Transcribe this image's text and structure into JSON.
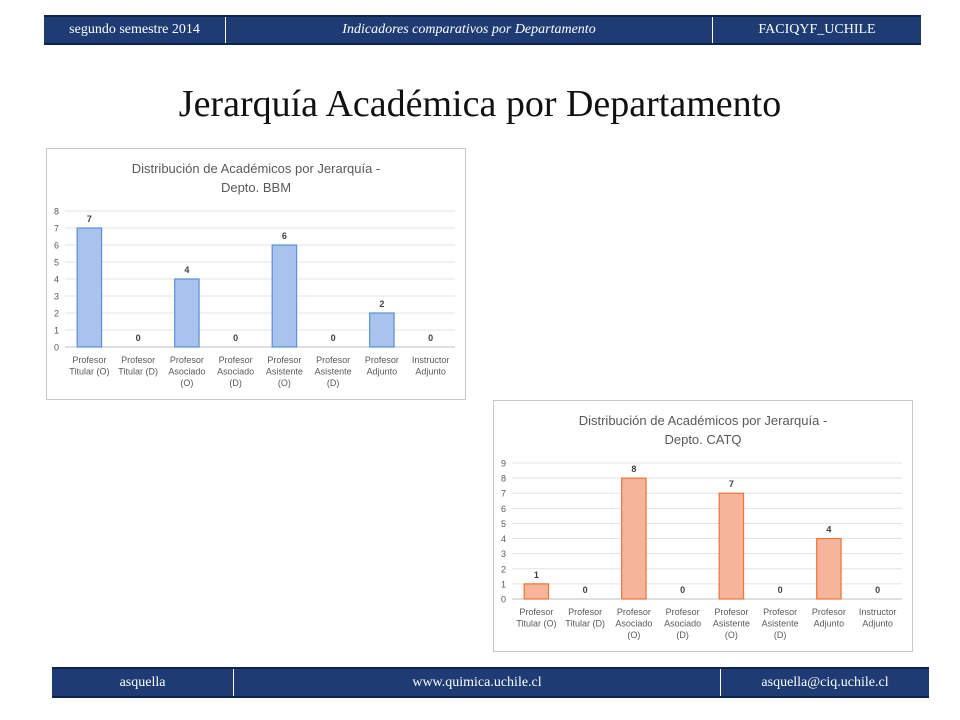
{
  "header": {
    "left": "segundo semestre 2014",
    "center": "Indicadores comparativos por Departamento",
    "right": "FACIQYF_UCHILE"
  },
  "page_title": "Jerarquía Académica por Departamento",
  "footer": {
    "left": "asquella",
    "center": "www.quimica.uchile.cl",
    "right": "asquella@ciq.uchile.cl"
  },
  "colors": {
    "header_bg": "#1f3b73",
    "bbm_bar_fill": "#a9c4ec",
    "bbm_bar_stroke": "#5b8fd6",
    "catq_bar_fill": "#f6b49a",
    "catq_bar_stroke": "#e8743b"
  },
  "chart_data": [
    {
      "type": "bar",
      "title": "Distribución de Académicos por Jerarquía - Depto. BBM",
      "title_lines": [
        "Distribución de Académicos por Jerarquía -",
        "Depto. BBM"
      ],
      "categories": [
        [
          "Profesor",
          "Titular (O)"
        ],
        [
          "Profesor",
          "Titular (D)"
        ],
        [
          "Profesor",
          "Asociado",
          "(O)"
        ],
        [
          "Profesor",
          "Asociado",
          "(D)"
        ],
        [
          "Profesor",
          "Asistente",
          "(O)"
        ],
        [
          "Profesor",
          "Asistente",
          "(D)"
        ],
        [
          "Profesor",
          "Adjunto"
        ],
        [
          "Instructor",
          "Adjunto"
        ]
      ],
      "values": [
        7,
        0,
        4,
        0,
        6,
        0,
        2,
        0
      ],
      "ylim": [
        0,
        8
      ],
      "yticks": [
        0,
        1,
        2,
        3,
        4,
        5,
        6,
        7,
        8
      ],
      "grid": true,
      "data_labels": true,
      "color": "bbm"
    },
    {
      "type": "bar",
      "title": "Distribución de Académicos por Jerarquía - Depto. CATQ",
      "title_lines": [
        "Distribución de Académicos por Jerarquía -",
        "Depto. CATQ"
      ],
      "categories": [
        [
          "Profesor",
          "Titular (O)"
        ],
        [
          "Profesor",
          "Titular (D)"
        ],
        [
          "Profesor",
          "Asociado",
          "(O)"
        ],
        [
          "Profesor",
          "Asociado",
          "(D)"
        ],
        [
          "Profesor",
          "Asistente",
          "(O)"
        ],
        [
          "Profesor",
          "Asistente",
          "(D)"
        ],
        [
          "Profesor",
          "Adjunto"
        ],
        [
          "Instructor",
          "Adjunto"
        ]
      ],
      "values": [
        1,
        0,
        8,
        0,
        7,
        0,
        4,
        0
      ],
      "ylim": [
        0,
        9
      ],
      "yticks": [
        0,
        1,
        2,
        3,
        4,
        5,
        6,
        7,
        8,
        9
      ],
      "grid": true,
      "data_labels": true,
      "color": "catq"
    }
  ]
}
